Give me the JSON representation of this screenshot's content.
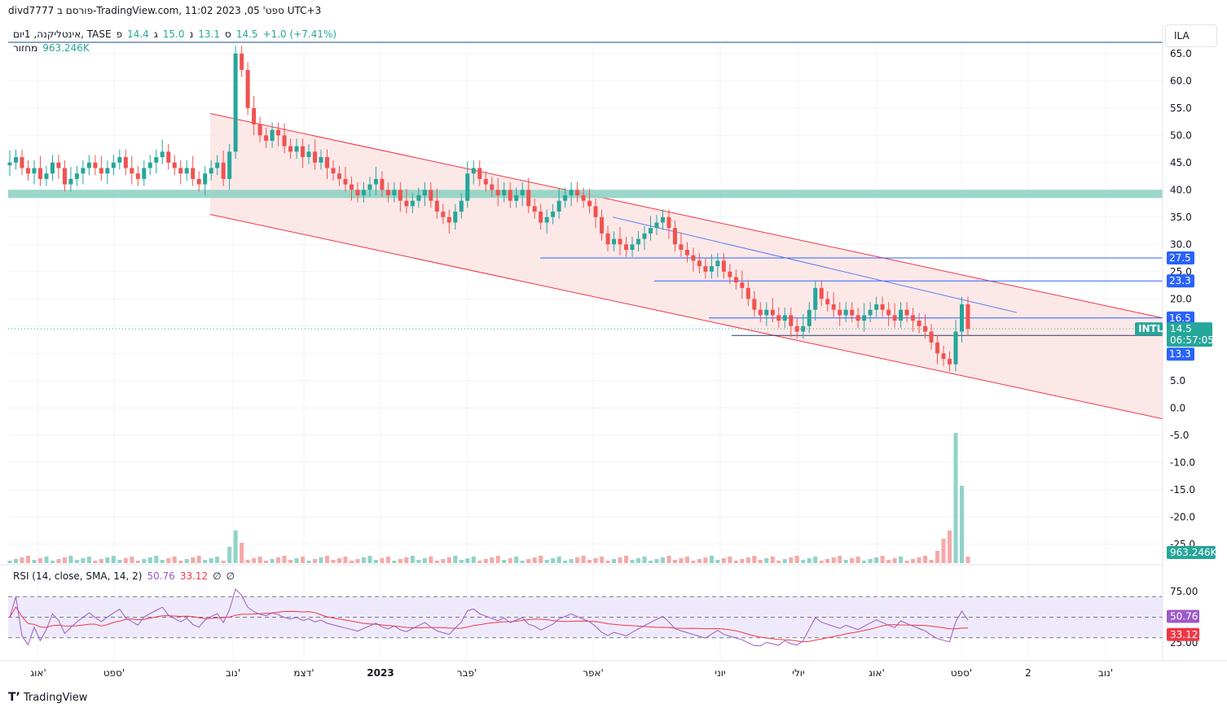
{
  "header": {
    "title_line": "divd7777 פורסם ב-TradingView.com, 11:02 2023 ,05 'ספט UTC+3"
  },
  "legend": {
    "symbol": "אינטליקנה, 1יום, TASE",
    "open_label": "פ",
    "open_value": "14.4",
    "high_label": "ג",
    "high_value": "15.0",
    "low_label": "נ",
    "low_value": "13.1",
    "close_label": "ס",
    "close_value": "14.5",
    "change": "+1.0 (+7.41%)",
    "volume_label": "מחזור",
    "volume_value": "963.246K"
  },
  "currency_box": "ILA",
  "rsi_legend": {
    "label": "RSI (14, close, SMA, 14, 2)",
    "rsi_value": "50.76",
    "sma_value": "33.12",
    "extra1": "∅",
    "extra2": "∅"
  },
  "badges": {
    "ticker": "INTL",
    "price": "14.5",
    "countdown": "06:57:05",
    "level_27": "27.5",
    "level_23": "23.3",
    "level_16": "16.5",
    "level_13": "13.3",
    "volume": "963.246K",
    "rsi": "50.76",
    "rsi_sma": "33.12"
  },
  "branding": "TradingView",
  "colors": {
    "up": "#26a69a",
    "down": "#ef5350",
    "vol_up": "#8fd3c9",
    "vol_down": "#f5a9a7",
    "channel_line": "#f23645",
    "channel_fill": "#fde4e4",
    "zone": "#8fd3c4",
    "h_line": "#2962ff",
    "trend_line": "#5b7cf5",
    "rsi_line": "#9c5ac7",
    "rsi_sma": "#f23645",
    "rsi_band": "#efeafb",
    "grid": "#f0f3fa"
  },
  "chart_data": {
    "type": "candlestick",
    "y_axis": {
      "ticks": [
        "65.0",
        "60.0",
        "55.0",
        "50.0",
        "45.0",
        "40.0",
        "35.0",
        "30.0",
        "25.0",
        "20.0",
        "15.0",
        "10.0",
        "5.0",
        "0.0",
        "-5.0",
        "-10.0",
        "-15.0",
        "-20.0",
        "-25.0"
      ],
      "ylim": [
        -25,
        66
      ]
    },
    "x_axis": {
      "ticks": [
        "אוג'",
        "ספט'",
        "נוב'",
        "דצמ'",
        "2023",
        "פבר'",
        "אפר'",
        "יוני",
        "יולי",
        "אוג'",
        "ספט'",
        "2",
        "נוב'"
      ],
      "tick_bold": [
        false,
        false,
        false,
        false,
        true,
        false,
        false,
        false,
        false,
        false,
        false,
        false,
        false
      ]
    },
    "rsi_axis": {
      "ticks": [
        "75.00",
        "25.00"
      ],
      "levels": [
        70,
        50,
        30
      ],
      "range": [
        20,
        80
      ]
    },
    "approx_closes": [
      45,
      46,
      44,
      43,
      44,
      42,
      43,
      45,
      44,
      41,
      42,
      43,
      44,
      45,
      44,
      43,
      44,
      45,
      46,
      44,
      43,
      42,
      44,
      45,
      46,
      47,
      45,
      44,
      43,
      44,
      42,
      41,
      43,
      44,
      45,
      42,
      47,
      65,
      62,
      55,
      52,
      50,
      49,
      51,
      50,
      48,
      47,
      48,
      46,
      47,
      45,
      46,
      44,
      43,
      42,
      41,
      40,
      39,
      40,
      41,
      42,
      40,
      39,
      40,
      38,
      37,
      38,
      39,
      40,
      38,
      36,
      35,
      34,
      36,
      38,
      43,
      44,
      42,
      41,
      40,
      39,
      40,
      38,
      39,
      40,
      37,
      36,
      34,
      35,
      36,
      38,
      39,
      40,
      39,
      38,
      37,
      35,
      32,
      30,
      31,
      30,
      29,
      30,
      31,
      32,
      33,
      34,
      35,
      33,
      30,
      29,
      28,
      27,
      26,
      25,
      26,
      27,
      25,
      24,
      23,
      22,
      20,
      18,
      17,
      18,
      17,
      16,
      17,
      15,
      14,
      15,
      18,
      22,
      20,
      19,
      18,
      17,
      18,
      17,
      16,
      17,
      18,
      19,
      18,
      17,
      16,
      18,
      17,
      16,
      15,
      14,
      12,
      10,
      9,
      8,
      14,
      19,
      14.5
    ],
    "horizontal_levels": [
      27.5,
      23.3,
      16.5,
      13.3
    ],
    "support_zone": [
      38.5,
      40.0
    ],
    "channel": {
      "upper_start": 54,
      "upper_end": 16.5,
      "lower_start": 35.5,
      "lower_end": -2
    },
    "trendline": {
      "start": 35,
      "end": 17.5
    },
    "last_price": 14.5,
    "last_volume": "963.246K",
    "rsi_last": 50.76,
    "rsi_sma_last": 33.12
  }
}
